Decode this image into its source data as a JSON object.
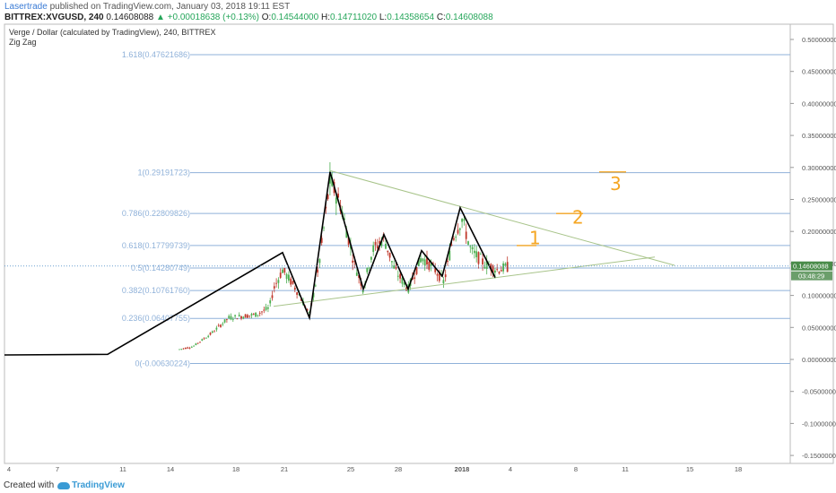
{
  "header": {
    "user": "Lasertrade",
    "published_text": "published on TradingView.com, January 03, 2018 19:11 EST",
    "symbol": "BITTREX:XVGUSD, 240",
    "last": "0.14608088",
    "change": "+0.00018638 (+0.13%)",
    "open_label": "O:",
    "open": "0.14544000",
    "high_label": "H:",
    "high": "0.14711020",
    "low_label": "L:",
    "low": "0.14358654",
    "close_label": "C:",
    "close": "0.14608088"
  },
  "footer": {
    "created_with": "Created with",
    "brand": "TradingView"
  },
  "chart_data": {
    "type": "candlestick",
    "title": "Verge / Dollar (calculated by TradingView), 240, BITTREX",
    "indicator": "Zig Zag",
    "ylim": [
      -0.16,
      0.53
    ],
    "y_ticks": [
      "0.50000000",
      "0.45000000",
      "0.40000000",
      "0.35000000",
      "0.30000000",
      "0.25000000",
      "0.20000000",
      "0.15000000",
      "0.10000000",
      "0.05000000",
      "0.00000000",
      "-0.05000000",
      "-0.10000000",
      "-0.15000000"
    ],
    "x_tick_labels": [
      "4",
      "7",
      "11",
      "14",
      "18",
      "21",
      "25",
      "28",
      "2018",
      "4",
      "8",
      "11",
      "15",
      "18"
    ],
    "price_label": "0.14608088",
    "countdown_label": "03:48:29",
    "fib_levels": [
      {
        "label": "1.618(0.47621686)",
        "value": 0.47621686
      },
      {
        "label": "1(0.29191723)",
        "value": 0.29191723
      },
      {
        "label": "0.786(0.22809826)",
        "value": 0.22809826
      },
      {
        "label": "0.618(0.17799739)",
        "value": 0.17799739
      },
      {
        "label": "0.5(0.14280749)",
        "value": 0.14280749
      },
      {
        "label": "0.382(0.10761760)",
        "value": 0.1076176
      },
      {
        "label": "0.236(0.06407755)",
        "value": 0.06407755
      },
      {
        "label": "0(-0.00630224)",
        "value": -0.00630224
      }
    ],
    "annotations": [
      "1",
      "2",
      "3"
    ],
    "colors": {
      "up": "#4caf50",
      "down": "#c0392b",
      "fib": "#8fb1d9",
      "zigzag": "#000000",
      "trend": "#a8c48a",
      "note": "#f5a623"
    }
  }
}
